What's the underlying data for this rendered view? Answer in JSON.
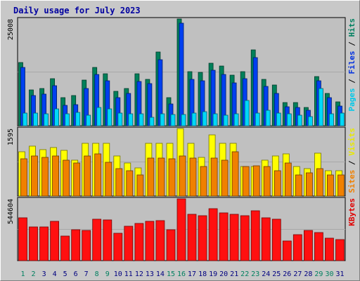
{
  "chart_data": {
    "type": "bar",
    "title": "Daily usage for July 2023",
    "categories": [
      "1",
      "2",
      "3",
      "4",
      "5",
      "6",
      "7",
      "8",
      "9",
      "10",
      "11",
      "12",
      "13",
      "14",
      "15",
      "16",
      "17",
      "18",
      "19",
      "20",
      "21",
      "22",
      "23",
      "24",
      "25",
      "26",
      "27",
      "28",
      "29",
      "30",
      "31"
    ],
    "weekend_days": [
      "1",
      "2",
      "8",
      "9",
      "15",
      "16",
      "22",
      "23",
      "29",
      "30"
    ],
    "panels": [
      {
        "id": "hits",
        "max_label": "25008",
        "ymax": 25008,
        "right_labels": [
          {
            "text": "Pages",
            "color": "#00c8e8"
          },
          {
            "text": "Files",
            "color": "#0030e0"
          },
          {
            "text": "Hits",
            "color": "#008060"
          }
        ],
        "series": [
          {
            "name": "Hits",
            "color": "#00805a",
            "values": [
              14800,
              8400,
              8700,
              11000,
              6600,
              7100,
              10700,
              13700,
              12200,
              8000,
              8800,
              12200,
              10900,
              17200,
              6600,
              25008,
              12700,
              12500,
              14600,
              14000,
              11800,
              12600,
              17800,
              10800,
              9500,
              5400,
              5500,
              4200,
              11500,
              7600,
              5600
            ]
          },
          {
            "name": "Files",
            "color": "#0040f0",
            "values": [
              13700,
              7100,
              7400,
              9300,
              4800,
              5000,
              8700,
              12000,
              10500,
              6500,
              7500,
              10300,
              9800,
              15500,
              5100,
              24000,
              10800,
              10500,
              13000,
              12000,
              10000,
              11000,
              16000,
              9200,
              7500,
              4400,
              4200,
              3600,
              10600,
              6500,
              4600
            ]
          },
          {
            "name": "Pages",
            "color": "#00d8f8",
            "values": [
              2900,
              2900,
              2800,
              4000,
              2800,
              3200,
              2500,
              4300,
              4000,
              2900,
              2800,
              2800,
              2000,
              2800,
              2600,
              2700,
              2900,
              3300,
              2800,
              2400,
              2800,
              6000,
              3000,
              3600,
              3000,
              2800,
              2500,
              2100,
              8700,
              2800,
              2900
            ]
          }
        ]
      },
      {
        "id": "visits",
        "max_label": "1595",
        "ymax": 1595,
        "right_labels": [
          {
            "text": "Sites",
            "color": "#f08000"
          },
          {
            "text": "Visits",
            "color": "#e8e800"
          }
        ],
        "series": [
          {
            "name": "Visits",
            "color": "#ffff00",
            "values": [
              1050,
              1180,
              1100,
              1150,
              1080,
              850,
              1250,
              1250,
              1250,
              950,
              780,
              670,
              1250,
              1250,
              1250,
              1595,
              1250,
              920,
              1440,
              1250,
              1250,
              700,
              700,
              850,
              950,
              1000,
              700,
              650,
              1020,
              600,
              600
            ]
          },
          {
            "name": "Sites",
            "color": "#f08000",
            "values": [
              880,
              940,
              920,
              950,
              850,
              780,
              950,
              1000,
              800,
              650,
              600,
              500,
              900,
              900,
              880,
              950,
              900,
              700,
              900,
              850,
              1050,
              700,
              720,
              700,
              600,
              780,
              500,
              550,
              650,
              500,
              500
            ]
          }
        ]
      },
      {
        "id": "kbytes",
        "max_label": "544604",
        "ymax": 544604,
        "right_labels": [
          {
            "text": "KBytes",
            "color": "#e00000"
          }
        ],
        "series": [
          {
            "name": "KBytes",
            "color": "#ff1010",
            "values": [
              380000,
              300000,
              300000,
              345000,
              215000,
              275000,
              265000,
              365000,
              360000,
              240000,
              305000,
              330000,
              345000,
              355000,
              275000,
              544604,
              410000,
              395000,
              460000,
              420000,
              410000,
              395000,
              440000,
              380000,
              365000,
              175000,
              230000,
              265000,
              250000,
              200000,
              185000
            ]
          }
        ]
      }
    ]
  }
}
